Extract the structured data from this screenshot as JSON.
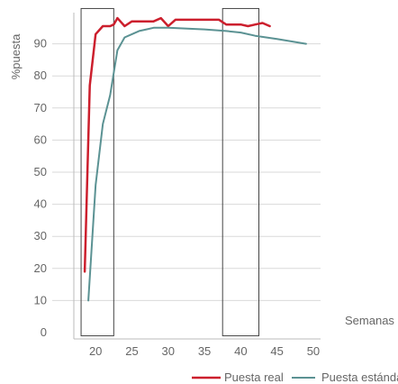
{
  "chart_data": {
    "type": "line",
    "title": "",
    "xlabel": "Semanas",
    "ylabel": "%puesta",
    "xlim": [
      17,
      51
    ],
    "ylim": [
      0,
      100
    ],
    "x_ticks": [
      20,
      25,
      30,
      35,
      40,
      45,
      50
    ],
    "y_ticks": [
      0,
      10,
      20,
      30,
      40,
      50,
      60,
      70,
      80,
      90
    ],
    "grid": "horizontal",
    "legend_position": "bottom-right",
    "series": [
      {
        "name": "Puesta real",
        "color": "#cc1f2d",
        "x": [
          18.5,
          19.2,
          20,
          21,
          22,
          22.5,
          23,
          24,
          25,
          26,
          27,
          28,
          29,
          30,
          31,
          32,
          33,
          34,
          35,
          36,
          37,
          38,
          39,
          40,
          41,
          42,
          43,
          44
        ],
        "y": [
          19,
          77,
          93,
          95.5,
          95.5,
          96,
          98,
          95.5,
          97,
          97,
          97,
          97,
          98,
          95.5,
          97.5,
          97.5,
          97.5,
          97.5,
          97.5,
          97.5,
          97.5,
          96,
          96,
          96,
          95.5,
          96,
          96.5,
          95.5
        ]
      },
      {
        "name": "Puesta estándar",
        "color": "#5b9293",
        "x": [
          19,
          20,
          21,
          22,
          23,
          24,
          25,
          26,
          27,
          28,
          30,
          32,
          35,
          38,
          40,
          42,
          45,
          49
        ],
        "y": [
          10,
          46,
          65,
          74,
          88,
          92,
          93,
          94,
          94.5,
          95,
          95,
          94.8,
          94.5,
          94,
          93.5,
          92.5,
          91.5,
          90
        ]
      }
    ],
    "highlight_boxes": [
      {
        "x_range": [
          18,
          22.5
        ],
        "y_range": [
          -1,
          101
        ]
      },
      {
        "x_range": [
          37.5,
          42.5
        ],
        "y_range": [
          -1,
          101
        ]
      }
    ]
  }
}
